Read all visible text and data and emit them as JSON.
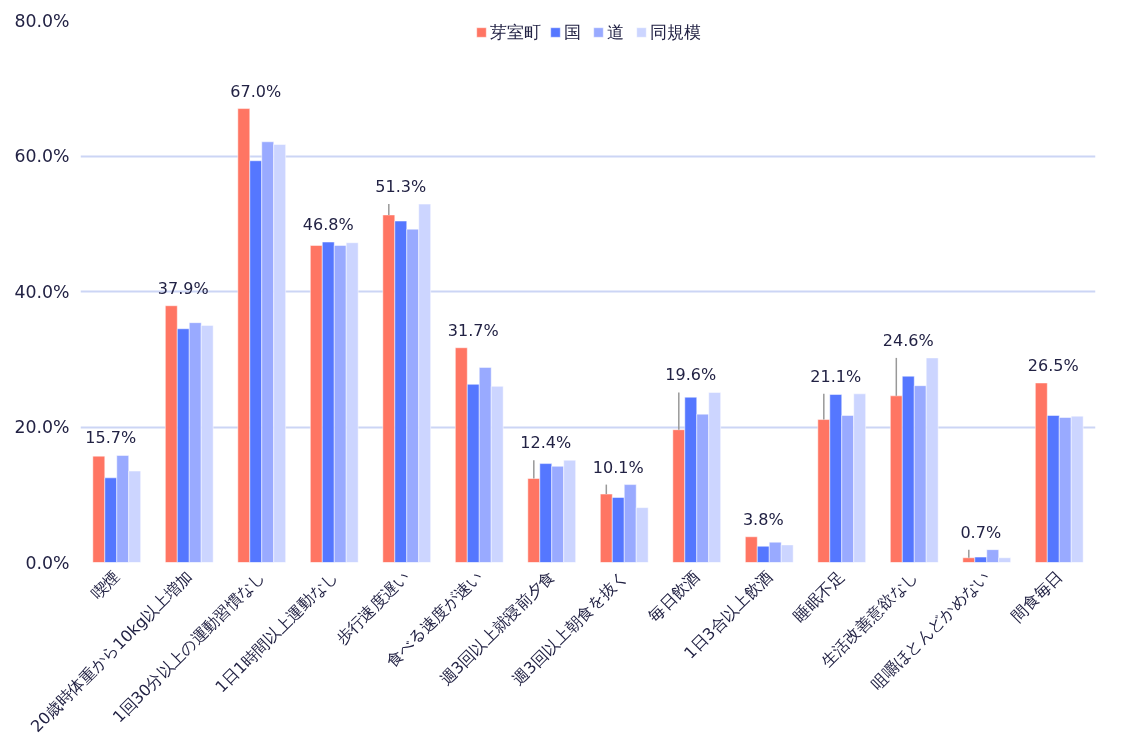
{
  "chart_data": {
    "type": "bar",
    "categories": [
      "喫煙",
      "20歳時体重から10kg以上増加",
      "1回30分以上の運動習慣なし",
      "1日1時間以上運動なし",
      "歩行速度遅い",
      "食べる速度が速い",
      "週3回以上就寝前夕食",
      "週3回以上朝食を抜く",
      "毎日飲酒",
      "1日3合以上飲酒",
      "睡眠不足",
      "生活改善意欲なし",
      "咀嚼ほとんどかめない",
      "間食毎日"
    ],
    "series": [
      {
        "name": "芽室町",
        "color": "#ff7563",
        "values": [
          15.7,
          37.9,
          67.0,
          46.8,
          51.3,
          31.7,
          12.4,
          10.1,
          19.6,
          3.8,
          21.1,
          24.6,
          0.7,
          26.5
        ],
        "value_labels": [
          "15.7%",
          "37.9%",
          "67.0%",
          "46.8%",
          "51.3%",
          "31.7%",
          "12.4%",
          "10.1%",
          "19.6%",
          "3.8%",
          "21.1%",
          "24.6%",
          "0.7%",
          "26.5%"
        ]
      },
      {
        "name": "国",
        "color": "#5577ff",
        "values": [
          12.5,
          34.5,
          59.3,
          47.3,
          50.4,
          26.3,
          14.6,
          9.6,
          24.4,
          2.4,
          24.8,
          27.5,
          0.8,
          21.7
        ]
      },
      {
        "name": "道",
        "color": "#99aaff",
        "values": [
          15.8,
          35.4,
          62.1,
          46.8,
          49.2,
          28.8,
          14.2,
          11.5,
          21.9,
          3.0,
          21.7,
          26.1,
          1.9,
          21.4
        ]
      },
      {
        "name": "同規模",
        "color": "#ccd5ff",
        "values": [
          13.5,
          35.0,
          61.7,
          47.2,
          52.9,
          26.0,
          15.1,
          8.1,
          25.1,
          2.6,
          24.9,
          30.2,
          0.7,
          21.6
        ]
      }
    ],
    "ylim": [
      0,
      80
    ],
    "yticks": [
      {
        "value": 0,
        "label": "0.0%"
      },
      {
        "value": 20,
        "label": "20.0%"
      },
      {
        "value": 40,
        "label": "40.0%"
      },
      {
        "value": 60,
        "label": "60.0%"
      },
      {
        "value": 80,
        "label": "80.0%"
      }
    ],
    "grid": "y",
    "legend": "top"
  }
}
